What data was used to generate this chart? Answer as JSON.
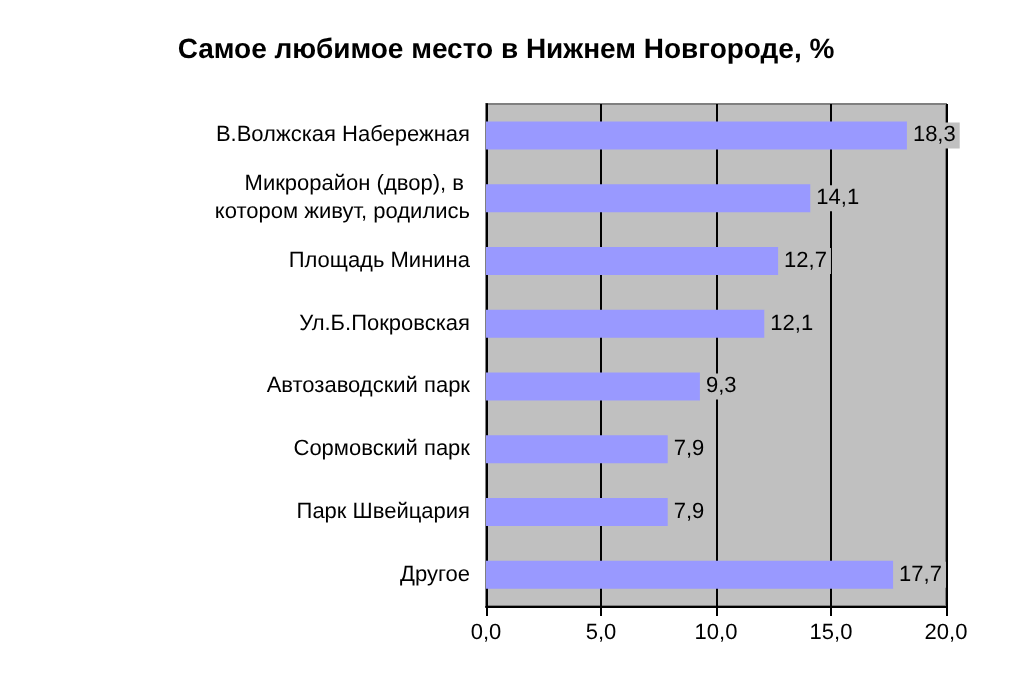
{
  "chart_data": {
    "type": "bar",
    "orientation": "horizontal",
    "title": "Самое любимое место в Нижнем Новгороде, %",
    "categories": [
      "В.Волжская Набережная",
      "Микрорайон (двор), в котором живут, родились",
      "Площадь Минина",
      "Ул.Б.Покровская",
      "Автозаводский парк",
      "Сормовский парк",
      "Парк Швейцария",
      "Другое"
    ],
    "values": [
      18.3,
      14.1,
      12.7,
      12.1,
      9.3,
      7.9,
      7.9,
      17.7
    ],
    "value_labels": [
      "18,3",
      "14,1",
      "12,7",
      "12,1",
      "9,3",
      "7,9",
      "7,9",
      "17,7"
    ],
    "color": "#9999ff",
    "xlim": [
      0,
      20
    ],
    "xticks": [
      {
        "value": 0,
        "label": "0,0"
      },
      {
        "value": 5,
        "label": "5,0"
      },
      {
        "value": 10,
        "label": "10,0"
      },
      {
        "value": 15,
        "label": "15,0"
      },
      {
        "value": 20,
        "label": "20,0"
      }
    ],
    "grid": "x"
  }
}
